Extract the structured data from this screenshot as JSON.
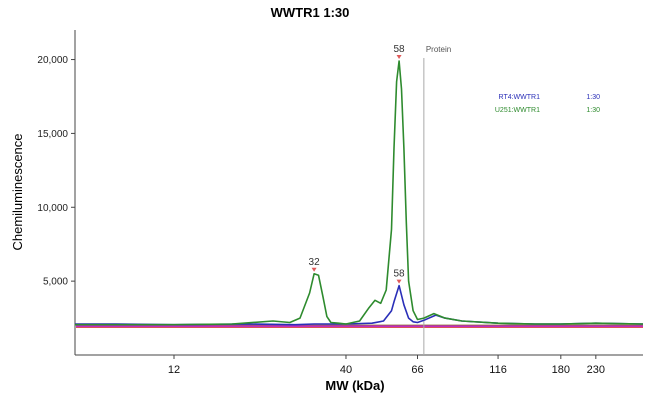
{
  "chart_data": {
    "type": "line",
    "title": "WWTR1 1:30",
    "xlabel": "MW (kDa)",
    "ylabel": "Chemiluminescence",
    "x_scale": "log",
    "x_ticks": [
      12,
      40,
      66,
      116,
      180,
      230
    ],
    "y_ticks": [
      5000,
      10000,
      15000,
      20000
    ],
    "y_tick_labels": [
      "5,000",
      "10,000",
      "15,000",
      "20,000"
    ],
    "ylim": [
      0,
      22000
    ],
    "xlim": [
      6,
      320
    ],
    "grid": false,
    "legend_position": "top-right",
    "marker": {
      "label": "Protein",
      "x": 69
    },
    "series": [
      {
        "name": "RT4:WWTR1",
        "dilution": "1:30",
        "color": "#2a2fb8",
        "x": [
          6,
          8,
          12,
          20,
          28,
          32,
          40,
          48,
          52,
          55,
          56,
          58,
          60,
          62,
          64,
          66,
          69,
          75,
          80,
          90,
          116,
          150,
          180,
          230,
          320
        ],
        "y": [
          2100,
          2100,
          2050,
          2100,
          2050,
          2100,
          2100,
          2150,
          2300,
          3000,
          3600,
          4700,
          3400,
          2500,
          2250,
          2200,
          2350,
          2700,
          2500,
          2300,
          2150,
          2100,
          2100,
          2150,
          2100
        ]
      },
      {
        "name": "U251:WWTR1",
        "dilution": "1:30",
        "color": "#2e8b2e",
        "x": [
          6,
          8,
          12,
          18,
          24,
          27,
          29,
          31,
          32,
          33,
          34,
          35,
          36,
          38,
          40,
          44,
          47,
          49,
          51,
          53,
          55,
          56,
          57,
          58,
          59,
          60,
          61,
          62,
          64,
          66,
          69,
          74,
          80,
          90,
          116,
          150,
          180,
          230,
          320
        ],
        "y": [
          2050,
          2050,
          2050,
          2100,
          2300,
          2200,
          2500,
          4200,
          5500,
          5400,
          4000,
          2600,
          2200,
          2150,
          2100,
          2300,
          3200,
          3700,
          3500,
          4400,
          8500,
          14000,
          18500,
          19900,
          18000,
          14000,
          9000,
          5000,
          3000,
          2400,
          2500,
          2800,
          2500,
          2300,
          2150,
          2100,
          2100,
          2150,
          2100
        ]
      }
    ],
    "baseline_bands": [
      {
        "color": "#cc1f1f",
        "y": 1900
      },
      {
        "color": "#8b6d2a",
        "y": 2000
      },
      {
        "color": "#c32bc3",
        "y": 1950
      }
    ],
    "peak_labels": [
      {
        "text": "32",
        "x": 32,
        "y": 5500
      },
      {
        "text": "58",
        "x": 58,
        "y": 19900
      },
      {
        "text": "58",
        "x": 58,
        "y": 4700
      }
    ]
  }
}
